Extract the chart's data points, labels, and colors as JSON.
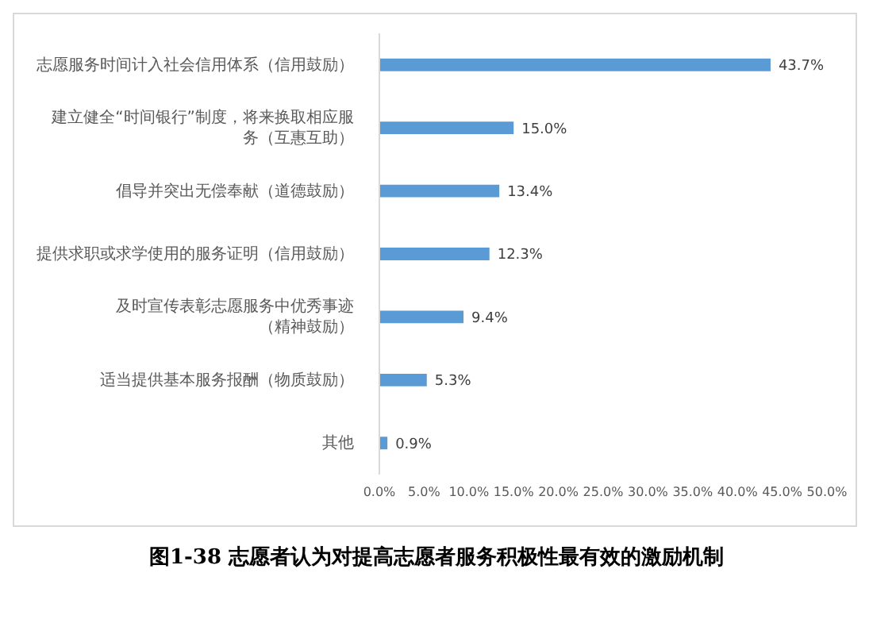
{
  "chart_data": {
    "type": "bar",
    "orientation": "horizontal",
    "title": "图1-38 志愿者认为对提高志愿者服务积极性最有效的激励机制",
    "categories": [
      "志愿服务时间计入社会信用体系（信用鼓励）",
      "建立健全“时间银行”制度，将来换取相应服务（互惠互助）",
      "倡导并突出无偿奉献（道德鼓励）",
      "提供求职或求学使用的服务证明（信用鼓励）",
      "及时宣传表彰志愿服务中优秀事迹（精神鼓励）",
      "适当提供基本服务报酬（物质鼓励）",
      "其他"
    ],
    "values": [
      43.7,
      15.0,
      13.4,
      12.3,
      9.4,
      5.3,
      0.9
    ],
    "value_labels": [
      "43.7%",
      "15.0%",
      "13.4%",
      "12.3%",
      "9.4%",
      "5.3%",
      "0.9%"
    ],
    "color": "#5b9bd5",
    "xlim": [
      0,
      50
    ],
    "xticks": [
      {
        "value": 0,
        "label": "0.0%"
      },
      {
        "value": 5,
        "label": "5.0%"
      },
      {
        "value": 10,
        "label": "10.0%"
      },
      {
        "value": 15,
        "label": "15.0%"
      },
      {
        "value": 20,
        "label": "20.0%"
      },
      {
        "value": 25,
        "label": "25.0%"
      },
      {
        "value": 30,
        "label": "30.0%"
      },
      {
        "value": 35,
        "label": "35.0%"
      },
      {
        "value": 40,
        "label": "40.0%"
      },
      {
        "value": 45,
        "label": "45.0%"
      },
      {
        "value": 50,
        "label": "50.0%"
      }
    ],
    "grid": false,
    "legend": false
  }
}
